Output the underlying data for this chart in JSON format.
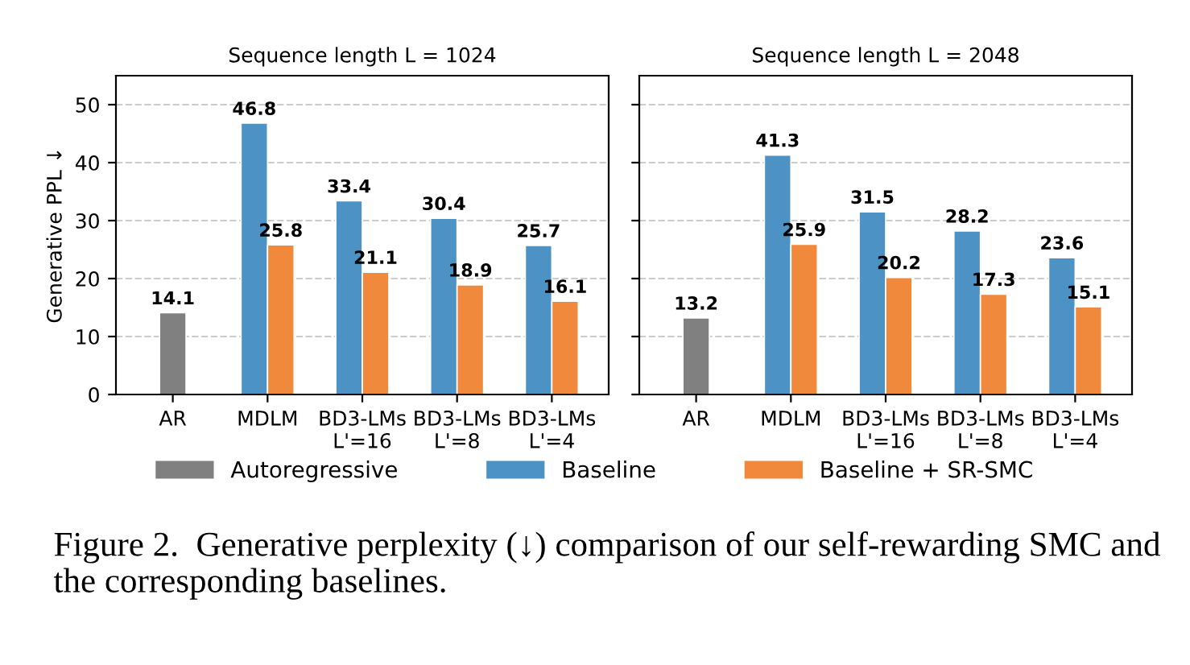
{
  "chart_data": [
    {
      "type": "bar",
      "title": "Sequence length L = 1024",
      "ylabel": "Generative PPL ↓",
      "categories": [
        "AR",
        "MDLM",
        "BD3-LMs\nL'=16",
        "BD3-LMs\nL'=8",
        "BD3-LMs\nL'=4"
      ],
      "series": [
        {
          "name": "Autoregressive",
          "color": "#808080",
          "values": [
            14.1,
            null,
            null,
            null,
            null
          ]
        },
        {
          "name": "Baseline",
          "color": "#4c92c4",
          "values": [
            null,
            46.8,
            33.4,
            30.4,
            25.7
          ]
        },
        {
          "name": "Baseline + SR-SMC",
          "color": "#f0893b",
          "values": [
            null,
            25.8,
            21.1,
            18.9,
            16.1
          ]
        }
      ],
      "ylim": [
        0,
        55
      ],
      "yticks": [
        0,
        10,
        20,
        30,
        40,
        50
      ],
      "grid": "y",
      "data_labels": true,
      "legend": "bottom",
      "annotations": [
        "Figure 2.  Generative perplexity (↓) comparison of our self-rewarding SMC and the corresponding baselines."
      ]
    },
    {
      "type": "bar",
      "title": "Sequence length L = 2048",
      "categories": [
        "AR",
        "MDLM",
        "BD3-LMs\nL'=16",
        "BD3-LMs\nL'=8",
        "BD3-LMs\nL'=4"
      ],
      "series": [
        {
          "color": "#808080",
          "values": [
            13.2,
            null,
            null,
            null,
            null
          ]
        },
        {
          "color": "#4c92c4",
          "values": [
            null,
            41.3,
            31.5,
            28.2,
            23.6
          ]
        },
        {
          "color": "#f0893b",
          "values": [
            null,
            25.9,
            20.2,
            17.3,
            15.1
          ]
        }
      ],
      "ylim": [
        0,
        55
      ],
      "yticks": [
        0,
        10,
        20,
        30,
        40,
        50
      ],
      "grid": "y",
      "data_labels": true,
      "tick_labels": "x"
    }
  ]
}
